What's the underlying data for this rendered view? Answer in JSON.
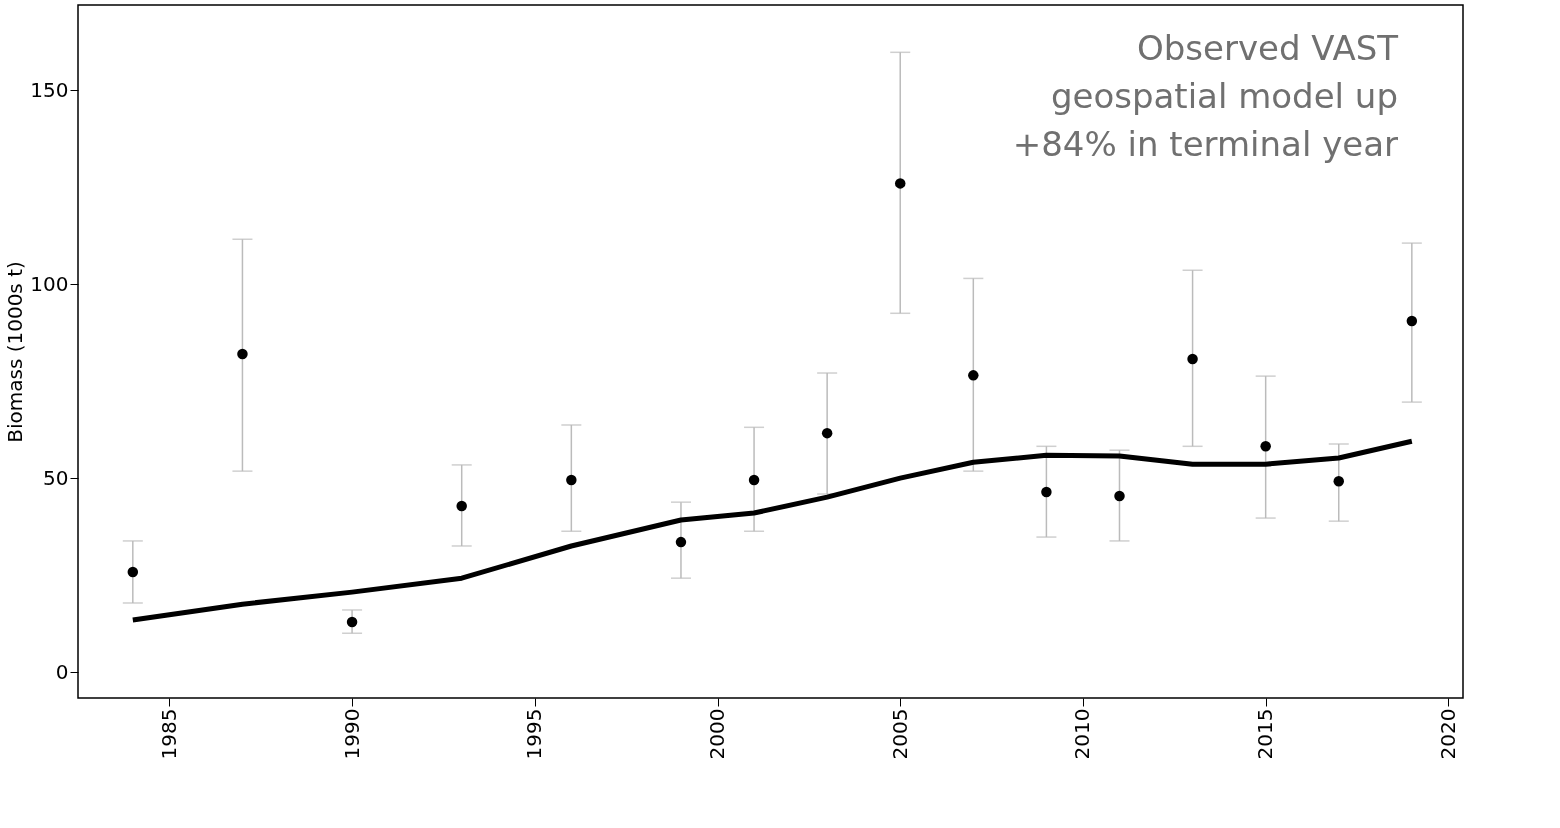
{
  "chart_data": {
    "type": "scatter",
    "ylabel": "Biomass (1000s t)",
    "annotations": [
      "Observed VAST\ngeospatial model up\n+84% in terminal year"
    ],
    "xlim": [
      1982.5,
      2020.4
    ],
    "xticks": [
      1985,
      1990,
      1995,
      2000,
      2005,
      2010,
      2015,
      2020
    ],
    "ylim": [
      -6.7,
      172
    ],
    "yticks": [
      0,
      50,
      100,
      150
    ],
    "grid": false,
    "legend": false,
    "series": [
      {
        "type": "scatter",
        "color": "#000000",
        "marker": "circle",
        "x": [
          1984,
          1987,
          1990,
          1993,
          1996,
          1999,
          2001,
          2003,
          2005,
          2007,
          2009,
          2011,
          2013,
          2015,
          2017,
          2019
        ],
        "values": [
          25.8,
          82,
          12.9,
          42.8,
          49.5,
          33.5,
          49.5,
          61.6,
          126,
          76.5,
          46.4,
          45.4,
          80.7,
          58.2,
          49.2,
          90.5
        ],
        "errors": [
          [
            17.8,
            33.8
          ],
          [
            51.8,
            111.6
          ],
          [
            10,
            16
          ],
          [
            32.5,
            53.4
          ],
          [
            36.3,
            63.7
          ],
          [
            24.2,
            43.8
          ],
          [
            36.3,
            63.1
          ],
          [
            45.9,
            77.1
          ],
          [
            92.5,
            159.8
          ],
          [
            51.8,
            101.5
          ],
          [
            34.8,
            58.2
          ],
          [
            33.8,
            57.2
          ],
          [
            58.2,
            103.6
          ],
          [
            39.7,
            76.3
          ],
          [
            38.9,
            58.8
          ],
          [
            69.6,
            110.6
          ]
        ]
      },
      {
        "type": "line",
        "color": "#000000",
        "line_style": "solid",
        "x": [
          1984,
          1987,
          1990,
          1993,
          1996,
          1999,
          2001,
          2003,
          2005,
          2007,
          2009,
          2011,
          2013,
          2015,
          2017,
          2019
        ],
        "values": [
          13.4,
          17.5,
          20.6,
          24.2,
          32.5,
          39.2,
          41,
          45.1,
          50,
          54.1,
          55.9,
          55.7,
          53.6,
          53.6,
          55.2,
          59.5
        ]
      }
    ]
  }
}
